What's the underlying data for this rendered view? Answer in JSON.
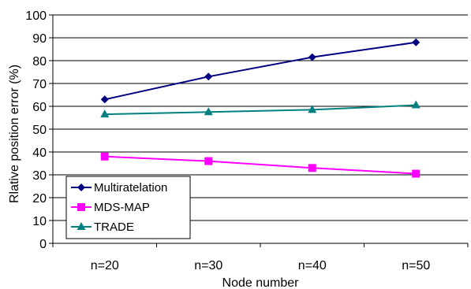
{
  "chart_data": {
    "type": "line",
    "title": "",
    "xlabel": "Node number",
    "ylabel": "Rlative position error (%)",
    "categories": [
      "n=20",
      "n=30",
      "n=40",
      "n=50"
    ],
    "ylim": [
      0,
      100
    ],
    "yticks": [
      0,
      10,
      20,
      30,
      40,
      50,
      60,
      70,
      80,
      90,
      100
    ],
    "grid": "horizontal",
    "legend_position": "bottom-left",
    "series": [
      {
        "name": "Multiratelation",
        "values": [
          63,
          73,
          81.5,
          88
        ],
        "color": "#000080",
        "marker": "diamond"
      },
      {
        "name": "MDS-MAP",
        "values": [
          38,
          36,
          33,
          30.5
        ],
        "color": "#ff00ff",
        "marker": "square"
      },
      {
        "name": "TRADE",
        "values": [
          56.5,
          57.5,
          58.5,
          60.5
        ],
        "color": "#008080",
        "marker": "triangle"
      }
    ]
  }
}
